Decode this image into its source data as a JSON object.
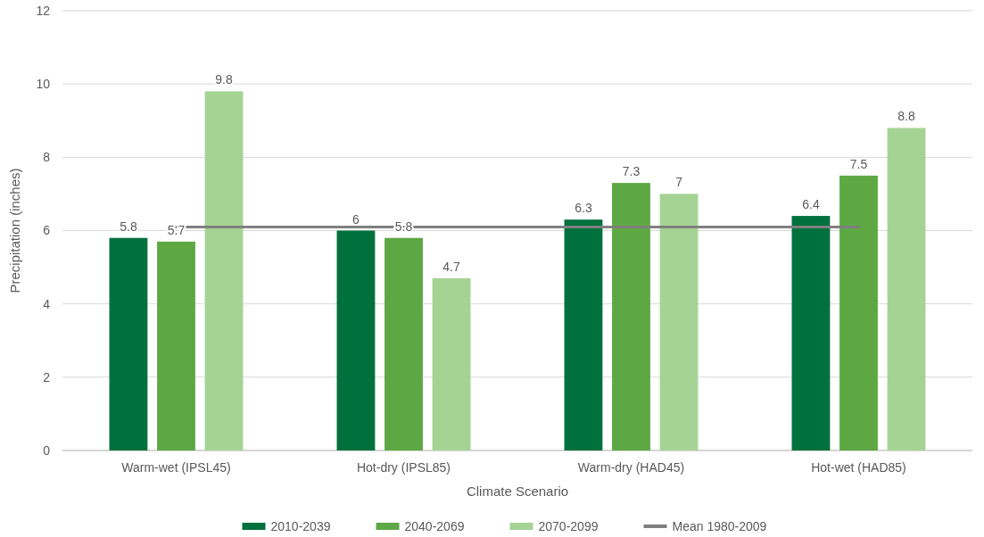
{
  "chart_data": {
    "type": "bar",
    "xlabel": "Climate Scenario",
    "ylabel": "Precipitation (inches)",
    "categories": [
      "Warm-wet (IPSL45)",
      "Hot-dry (IPSL85)",
      "Warm-dry (HAD45)",
      "Hot-wet (HAD85)"
    ],
    "series": [
      {
        "name": "2010-2039",
        "color": "#00703c",
        "values": [
          5.8,
          6,
          6.3,
          6.4
        ],
        "value_labels": [
          "5.8",
          "6",
          "6.3",
          "6.4"
        ]
      },
      {
        "name": "2040-2069",
        "color": "#5ea843",
        "values": [
          5.7,
          5.8,
          7.3,
          7.5
        ],
        "value_labels": [
          "5.7",
          "5.8",
          "7.3",
          "7.5"
        ]
      },
      {
        "name": "2070-2099",
        "color": "#a5d394",
        "values": [
          9.8,
          4.7,
          7,
          8.8
        ],
        "value_labels": [
          "9.8",
          "4.7",
          "7",
          "8.8"
        ]
      },
      {
        "name": "Mean 1980-2009",
        "type": "line",
        "color": "#808080",
        "values": [
          6.1,
          6.1,
          6.1,
          6.1
        ]
      }
    ],
    "ylim": [
      0,
      12
    ],
    "yticks": [
      0,
      2,
      4,
      6,
      8,
      10,
      12
    ],
    "grid": "y",
    "legend": "bottom"
  }
}
